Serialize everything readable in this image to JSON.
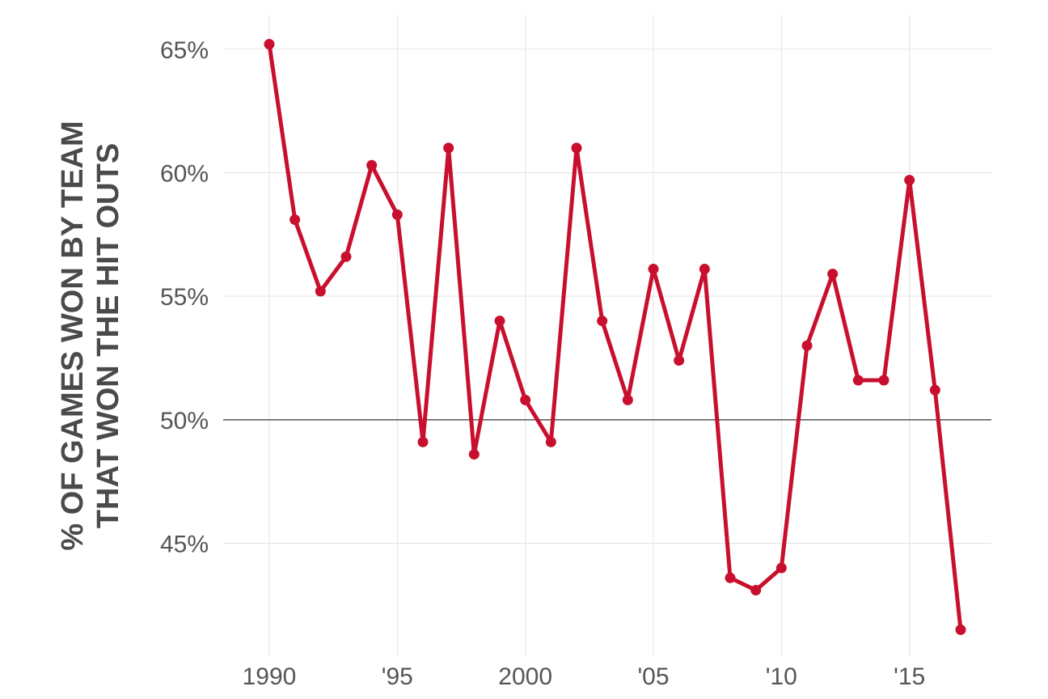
{
  "chart_data": {
    "type": "line",
    "title": "",
    "xlabel": "",
    "ylabel_lines": [
      "% OF GAMES WON BY TEAM",
      "THAT WON THE HIT OUTS"
    ],
    "x": [
      1990,
      1991,
      1992,
      1993,
      1994,
      1995,
      1996,
      1997,
      1998,
      1999,
      2000,
      2001,
      2002,
      2003,
      2004,
      2005,
      2006,
      2007,
      2008,
      2009,
      2010,
      2011,
      2012,
      2013,
      2014,
      2015,
      2016,
      2017
    ],
    "series": [
      {
        "values": [
          65.2,
          58.1,
          55.2,
          56.6,
          60.3,
          58.3,
          49.1,
          61.0,
          48.6,
          54.0,
          50.8,
          49.1,
          61.0,
          54.0,
          50.8,
          56.1,
          52.4,
          56.1,
          43.6,
          43.1,
          44.0,
          53.0,
          55.9,
          51.6,
          51.6,
          59.7,
          51.2,
          41.5
        ]
      }
    ],
    "xlim": [
      1988.2,
      2018.2
    ],
    "ylim": [
      40.4,
      66.4
    ],
    "x_ticks": [
      1990,
      1995,
      2000,
      2005,
      2010,
      2015
    ],
    "x_tick_labels": [
      "1990",
      "'95",
      "2000",
      "'05",
      "'10",
      "'15"
    ],
    "y_ticks": [
      45,
      50,
      55,
      60,
      65
    ],
    "y_tick_labels": [
      "45%",
      "50%",
      "55%",
      "60%",
      "65%"
    ],
    "reference_line": 50,
    "grid": true,
    "line_color": "#c8102e",
    "grid_color": "#e3e3e3",
    "reference_color": "#555555"
  }
}
